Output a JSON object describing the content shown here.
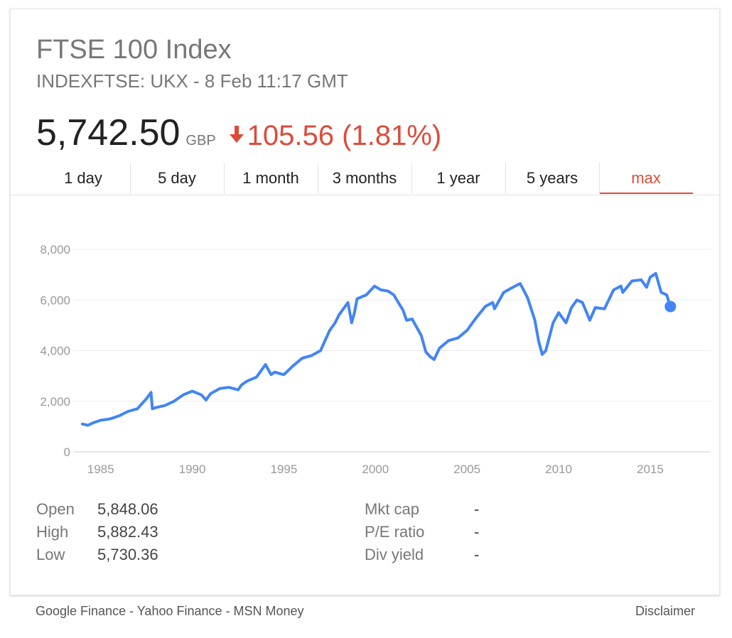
{
  "header": {
    "title": "FTSE 100 Index",
    "subtitle": "INDEXFTSE: UKX - 8 Feb 11:17 GMT",
    "price": "5,742.50",
    "currency": "GBP",
    "change": "105.56 (1.81%)",
    "change_direction": "down",
    "change_color": "#dd4b39"
  },
  "tabs": [
    {
      "label": "1 day"
    },
    {
      "label": "5 day"
    },
    {
      "label": "1 month"
    },
    {
      "label": "3 months"
    },
    {
      "label": "1 year"
    },
    {
      "label": "5 years"
    },
    {
      "label": "max",
      "active": true
    }
  ],
  "stats": {
    "left": [
      {
        "label": "Open",
        "value": "5,848.06"
      },
      {
        "label": "High",
        "value": "5,882.43"
      },
      {
        "label": "Low",
        "value": "5,730.36"
      }
    ],
    "right": [
      {
        "label": "Mkt cap",
        "value": "-"
      },
      {
        "label": "P/E ratio",
        "value": "-"
      },
      {
        "label": "Div yield",
        "value": "-"
      }
    ]
  },
  "footer": {
    "sources": [
      "Google Finance",
      "Yahoo Finance",
      "MSN Money"
    ],
    "separator": " - ",
    "disclaimer": "Disclaimer"
  },
  "chart_data": {
    "type": "line",
    "title": "",
    "xlabel": "",
    "ylabel": "",
    "line_color": "#4285f4",
    "grid": true,
    "xlim": [
      1983.5,
      2018.3
    ],
    "ylim": [
      0,
      8000
    ],
    "y_ticks": [
      0,
      2000,
      4000,
      6000,
      8000
    ],
    "y_tick_labels": [
      "0",
      "2,000",
      "4,000",
      "6,000",
      "8,000"
    ],
    "x_ticks": [
      1985,
      1990,
      1995,
      2000,
      2005,
      2010,
      2015
    ],
    "x_tick_labels": [
      "1985",
      "1990",
      "1995",
      "2000",
      "2005",
      "2010",
      "2015"
    ],
    "series": [
      {
        "x": [
          1984.0,
          1984.3,
          1984.6,
          1985.0,
          1985.5,
          1986.0,
          1986.5,
          1987.0,
          1987.5,
          1987.75,
          1987.82,
          1988.0,
          1988.5,
          1989.0,
          1989.5,
          1990.0,
          1990.5,
          1990.75,
          1991.0,
          1991.5,
          1992.0,
          1992.5,
          1992.7,
          1993.0,
          1993.5,
          1994.0,
          1994.3,
          1994.5,
          1995.0,
          1995.5,
          1996.0,
          1996.5,
          1997.0,
          1997.5,
          1997.8,
          1998.0,
          1998.5,
          1998.7,
          1998.85,
          1999.0,
          1999.5,
          1999.95,
          2000.3,
          2000.7,
          2001.0,
          2001.5,
          2001.7,
          2002.0,
          2002.5,
          2002.75,
          2003.0,
          2003.2,
          2003.5,
          2004.0,
          2004.5,
          2005.0,
          2005.5,
          2006.0,
          2006.4,
          2006.5,
          2007.0,
          2007.5,
          2007.9,
          2008.3,
          2008.7,
          2008.9,
          2009.1,
          2009.3,
          2009.7,
          2010.0,
          2010.4,
          2010.7,
          2011.0,
          2011.3,
          2011.7,
          2012.0,
          2012.5,
          2013.0,
          2013.4,
          2013.5,
          2014.0,
          2014.5,
          2014.8,
          2015.0,
          2015.3,
          2015.6,
          2015.9,
          2016.1
        ],
        "values": [
          1100,
          1050,
          1150,
          1250,
          1300,
          1420,
          1600,
          1700,
          2100,
          2350,
          1700,
          1750,
          1830,
          2000,
          2250,
          2400,
          2250,
          2050,
          2300,
          2500,
          2550,
          2450,
          2650,
          2800,
          2950,
          3450,
          3050,
          3150,
          3050,
          3400,
          3700,
          3800,
          4000,
          4800,
          5100,
          5400,
          5900,
          5100,
          5500,
          6050,
          6200,
          6550,
          6400,
          6350,
          6200,
          5600,
          5200,
          5250,
          4600,
          3950,
          3750,
          3650,
          4100,
          4400,
          4500,
          4800,
          5300,
          5750,
          5900,
          5650,
          6300,
          6500,
          6650,
          6100,
          5200,
          4400,
          3850,
          4000,
          5100,
          5500,
          5100,
          5700,
          6000,
          5900,
          5200,
          5700,
          5650,
          6400,
          6550,
          6300,
          6750,
          6800,
          6500,
          6900,
          7050,
          6300,
          6200,
          5742
        ]
      }
    ],
    "end_point": {
      "x": 2016.1,
      "y": 5742
    }
  }
}
